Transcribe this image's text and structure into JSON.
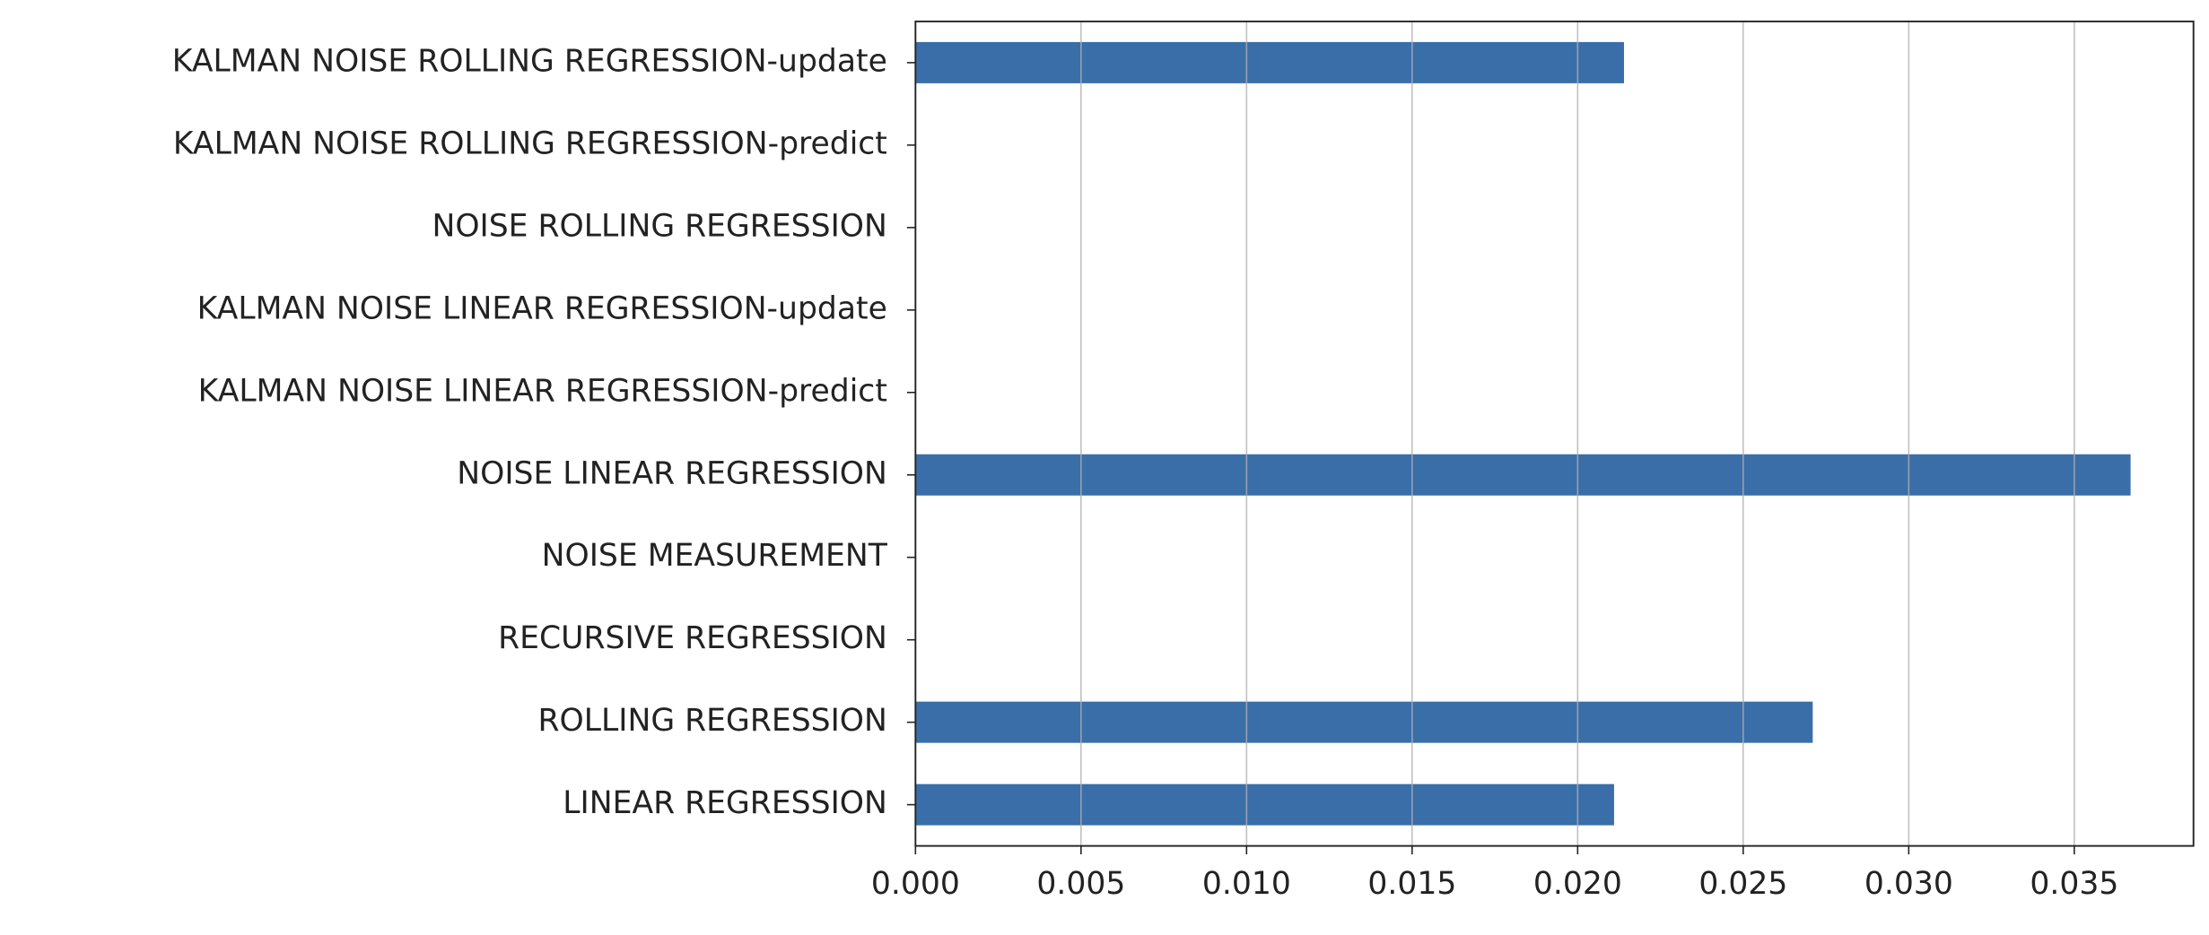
{
  "chart_data": {
    "type": "barh",
    "categories": [
      "LINEAR REGRESSION",
      "ROLLING REGRESSION",
      "RECURSIVE REGRESSION",
      "NOISE MEASUREMENT",
      "NOISE LINEAR REGRESSION",
      "KALMAN NOISE LINEAR REGRESSION-predict",
      "KALMAN NOISE LINEAR REGRESSION-update",
      "NOISE ROLLING REGRESSION",
      "KALMAN NOISE ROLLING REGRESSION-predict",
      "KALMAN NOISE ROLLING REGRESSION-update"
    ],
    "values": [
      0.0211,
      0.0271,
      0,
      0,
      0.0367,
      0,
      0,
      0,
      0,
      0.0214
    ],
    "color": "#3a6ea9",
    "xlim": [
      0,
      0.0386
    ],
    "xticks": [
      {
        "value": 0,
        "label": "0.000"
      },
      0.005,
      {
        "value": 0.01,
        "label": "0.010"
      },
      0.015,
      {
        "value": 0.02,
        "label": "0.020"
      },
      0.025,
      {
        "value": 0.03,
        "label": "0.030"
      },
      0.035
    ],
    "grid": true
  }
}
